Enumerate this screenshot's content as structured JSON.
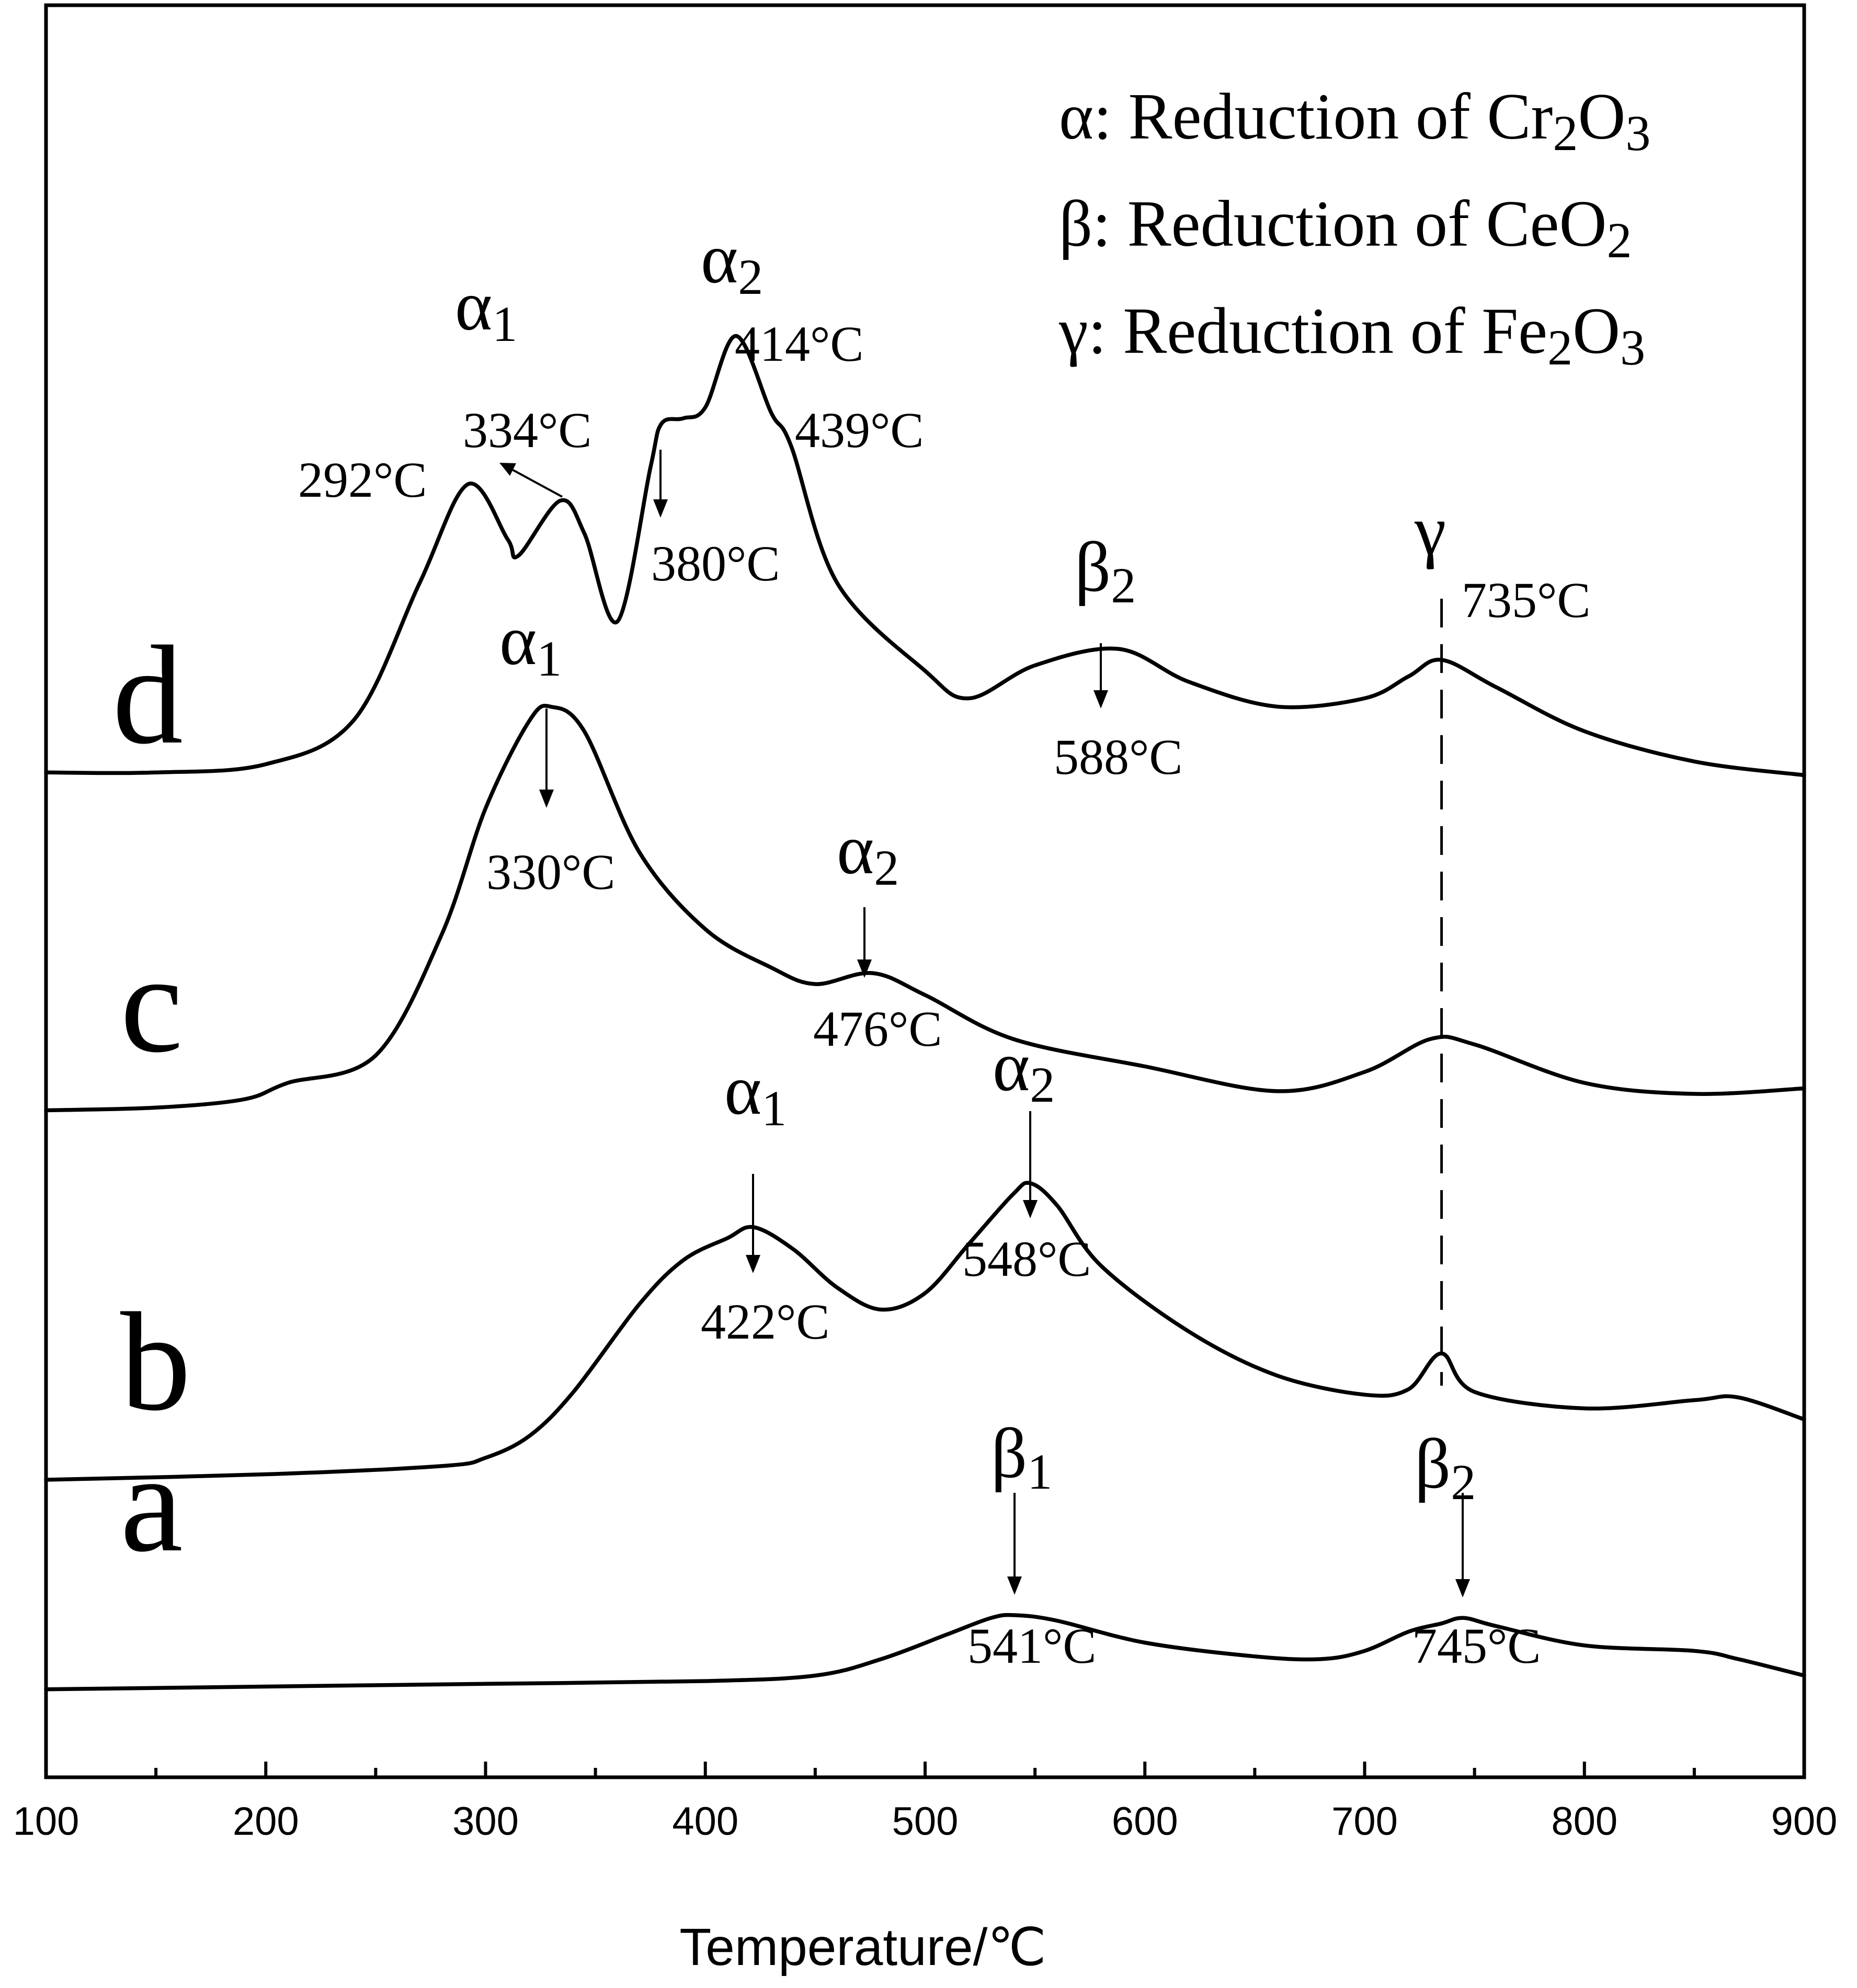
{
  "chart_data": {
    "type": "line",
    "title": "",
    "xlabel": "Temperature/℃",
    "ylabel": "",
    "xlim": [
      100,
      900
    ],
    "x_ticks": [
      100,
      200,
      300,
      400,
      500,
      600,
      700,
      800,
      900
    ],
    "x_tick_labels": [
      "100",
      "200",
      "300",
      "400",
      "500",
      "600",
      "700",
      "800",
      "900"
    ],
    "grid": false,
    "legend_position": "top-right",
    "legend": [
      {
        "symbol": "α",
        "text": "Reduction of Cr",
        "sub1": "2",
        "mid": "O",
        "sub2": "3"
      },
      {
        "symbol": "β",
        "text": "Reduction of CeO",
        "sub1": "2",
        "mid": "",
        "sub2": ""
      },
      {
        "symbol": "γ",
        "text": "Reduction of Fe",
        "sub1": "2",
        "mid": "O",
        "sub2": "3"
      }
    ],
    "reference_line_x": 735,
    "series": [
      {
        "name": "a",
        "baseline": -1.15,
        "points": [
          [
            100,
            -1.15
          ],
          [
            200,
            -1.1
          ],
          [
            300,
            -1.05
          ],
          [
            400,
            -1.0
          ],
          [
            450,
            -0.9
          ],
          [
            480,
            -0.6
          ],
          [
            510,
            -0.15
          ],
          [
            530,
            0.15
          ],
          [
            541,
            0.2
          ],
          [
            560,
            0.1
          ],
          [
            600,
            -0.3
          ],
          [
            650,
            -0.55
          ],
          [
            680,
            -0.6
          ],
          [
            700,
            -0.45
          ],
          [
            720,
            -0.1
          ],
          [
            735,
            0.05
          ],
          [
            745,
            0.15
          ],
          [
            760,
            0.0
          ],
          [
            800,
            -0.35
          ],
          [
            850,
            -0.45
          ],
          [
            870,
            -0.6
          ],
          [
            900,
            -0.9
          ]
        ],
        "peaks": [
          {
            "symbol": "β",
            "sub": "1",
            "temp": 541,
            "label": "541°C"
          },
          {
            "symbol": "β",
            "sub": "2",
            "temp": 745,
            "label": "745°C"
          }
        ]
      },
      {
        "name": "b",
        "baseline": -1.0,
        "points": [
          [
            100,
            -1.0
          ],
          [
            200,
            -0.9
          ],
          [
            280,
            -0.75
          ],
          [
            300,
            -0.6
          ],
          [
            320,
            -0.2
          ],
          [
            340,
            0.6
          ],
          [
            370,
            2.2
          ],
          [
            390,
            3.0
          ],
          [
            410,
            3.4
          ],
          [
            422,
            3.6
          ],
          [
            440,
            3.2
          ],
          [
            460,
            2.5
          ],
          [
            480,
            2.1
          ],
          [
            500,
            2.4
          ],
          [
            520,
            3.3
          ],
          [
            540,
            4.2
          ],
          [
            548,
            4.4
          ],
          [
            560,
            4.0
          ],
          [
            580,
            2.9
          ],
          [
            620,
            1.7
          ],
          [
            660,
            0.9
          ],
          [
            700,
            0.55
          ],
          [
            720,
            0.65
          ],
          [
            735,
            1.3
          ],
          [
            750,
            0.6
          ],
          [
            800,
            0.3
          ],
          [
            850,
            0.45
          ],
          [
            870,
            0.5
          ],
          [
            900,
            0.1
          ]
        ],
        "peaks": [
          {
            "symbol": "α",
            "sub": "1",
            "temp": 422,
            "label": "422°C"
          },
          {
            "symbol": "α",
            "sub": "2",
            "temp": 548,
            "label": "548°C"
          }
        ]
      },
      {
        "name": "c",
        "baseline": -0.7,
        "points": [
          [
            100,
            -0.7
          ],
          [
            150,
            -0.65
          ],
          [
            190,
            -0.5
          ],
          [
            210,
            -0.2
          ],
          [
            250,
            0.3
          ],
          [
            280,
            2.5
          ],
          [
            300,
            4.8
          ],
          [
            320,
            6.4
          ],
          [
            330,
            6.65
          ],
          [
            345,
            6.2
          ],
          [
            370,
            4.0
          ],
          [
            400,
            2.6
          ],
          [
            430,
            1.9
          ],
          [
            450,
            1.6
          ],
          [
            476,
            1.8
          ],
          [
            500,
            1.4
          ],
          [
            540,
            0.6
          ],
          [
            600,
            0.1
          ],
          [
            660,
            -0.35
          ],
          [
            700,
            0.0
          ],
          [
            730,
            0.6
          ],
          [
            750,
            0.5
          ],
          [
            800,
            -0.2
          ],
          [
            850,
            -0.4
          ],
          [
            900,
            -0.3
          ]
        ],
        "peaks": [
          {
            "symbol": "α",
            "sub": "1",
            "temp": 330,
            "label": "330°C"
          },
          {
            "symbol": "α",
            "sub": "2",
            "temp": 476,
            "label": "476°C"
          }
        ]
      },
      {
        "name": "d",
        "baseline": -0.45,
        "points": [
          [
            100,
            -0.45
          ],
          [
            150,
            -0.45
          ],
          [
            200,
            -0.3
          ],
          [
            240,
            0.5
          ],
          [
            270,
            3.0
          ],
          [
            292,
            4.8
          ],
          [
            310,
            3.8
          ],
          [
            315,
            3.5
          ],
          [
            334,
            4.5
          ],
          [
            345,
            3.9
          ],
          [
            360,
            2.3
          ],
          [
            375,
            5.1
          ],
          [
            380,
            5.9
          ],
          [
            390,
            6.0
          ],
          [
            400,
            6.2
          ],
          [
            414,
            7.5
          ],
          [
            430,
            6.1
          ],
          [
            439,
            5.5
          ],
          [
            460,
            3.0
          ],
          [
            500,
            1.4
          ],
          [
            520,
            0.9
          ],
          [
            550,
            1.5
          ],
          [
            588,
            1.8
          ],
          [
            620,
            1.2
          ],
          [
            660,
            0.75
          ],
          [
            700,
            0.9
          ],
          [
            720,
            1.3
          ],
          [
            735,
            1.6
          ],
          [
            760,
            1.1
          ],
          [
            800,
            0.3
          ],
          [
            850,
            -0.25
          ],
          [
            900,
            -0.5
          ]
        ],
        "peaks": [
          {
            "symbol": "α",
            "sub": "1",
            "temp": 292,
            "label": "292°C"
          },
          {
            "symbol": "α",
            "sub": "1",
            "temp": 334,
            "label": "334°C"
          },
          {
            "symbol": "α",
            "sub": "2",
            "temp": 380,
            "label": "380°C"
          },
          {
            "symbol": "α",
            "sub": "2",
            "temp": 414,
            "label": "414°C"
          },
          {
            "symbol": "α",
            "sub": "2",
            "temp": 439,
            "label": "439°C"
          },
          {
            "symbol": "β",
            "sub": "2",
            "temp": 588,
            "label": "588°C"
          },
          {
            "symbol": "γ",
            "sub": "",
            "temp": 735,
            "label": "735°C"
          }
        ]
      }
    ]
  }
}
